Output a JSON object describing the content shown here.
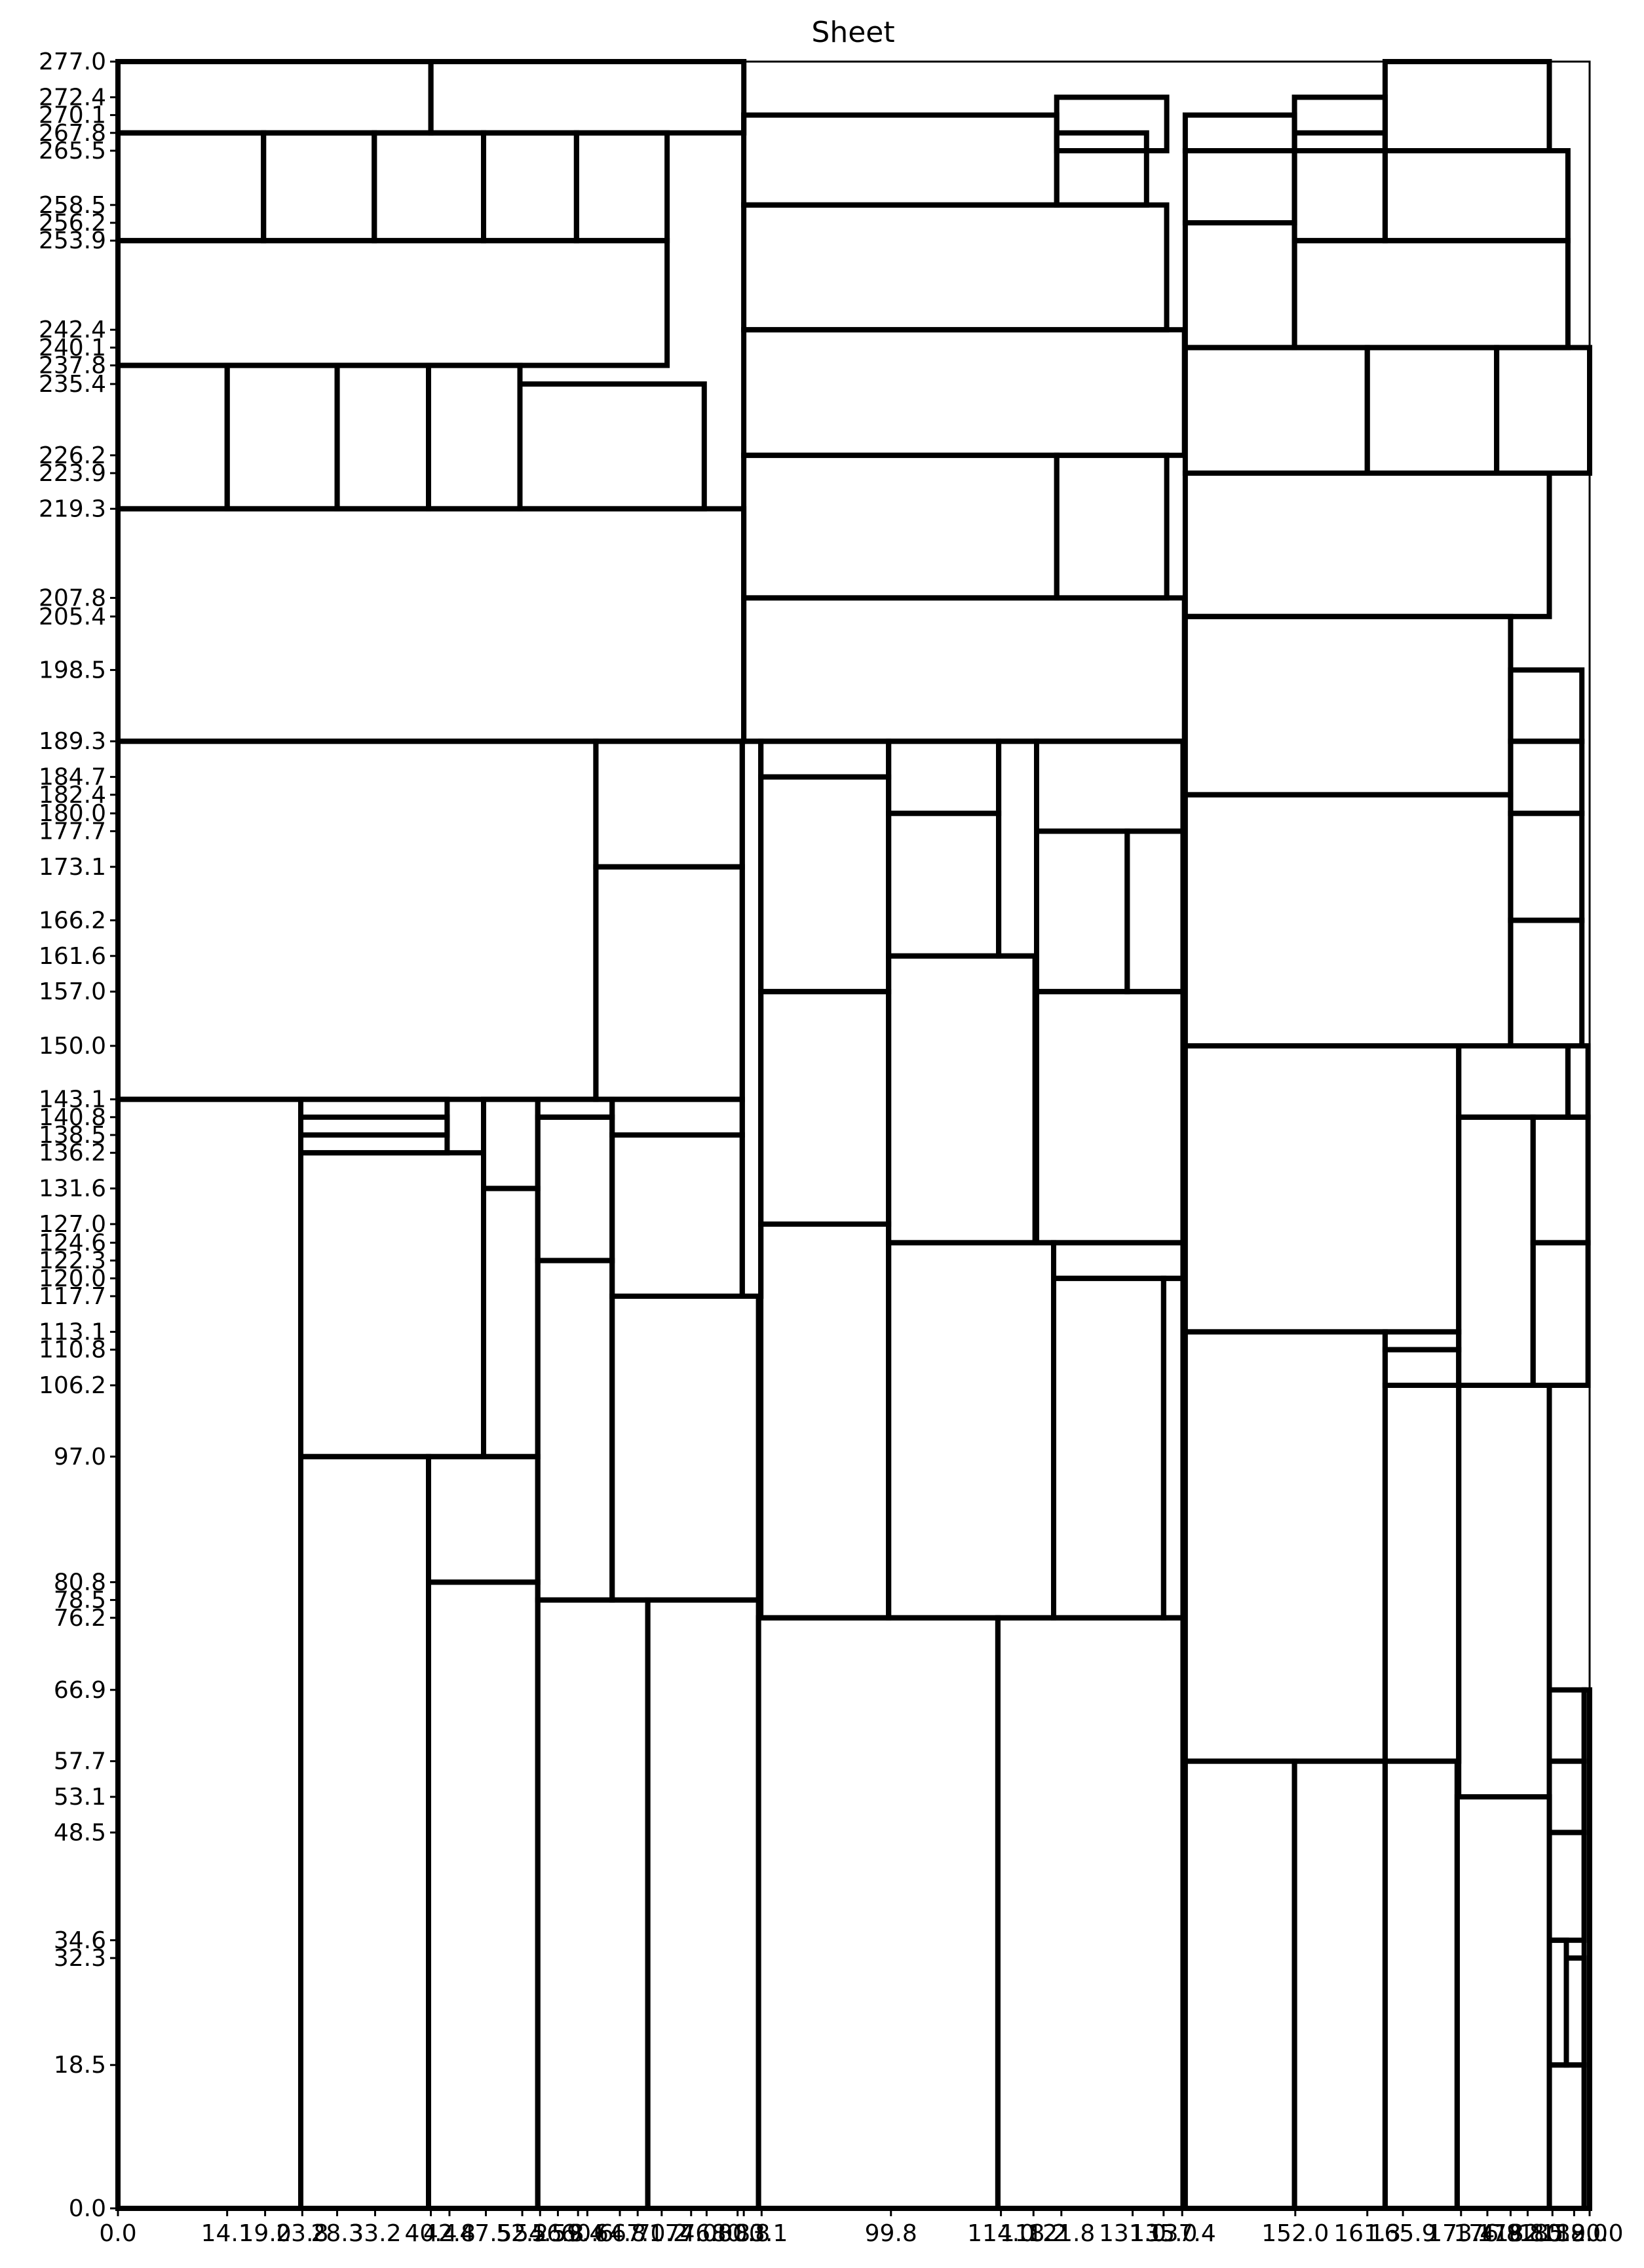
{
  "title": "Sheet",
  "chart_data": {
    "type": "cutting-layout",
    "title": "Sheet",
    "xlim": [
      0,
      190
    ],
    "ylim": [
      0,
      277
    ],
    "x_ticks": [
      "0.0",
      "14.1",
      "19.0",
      "23.8",
      "28.3",
      "33.2",
      "40.4",
      "42.8",
      "47.5",
      "52.2",
      "54.5",
      "56.8",
      "59.4",
      "60.6",
      "64.8",
      "67.1",
      "70.2",
      "74.0",
      "76.0",
      "80.0",
      "80.8",
      "83.1",
      "99.8",
      "114.0",
      "118.2",
      "121.8",
      "131.0",
      "135.0",
      "137.4",
      "152.0",
      "161.3",
      "165.9",
      "173.4",
      "176.8",
      "179.8",
      "182.0",
      "185.2",
      "188.0",
      "190.0"
    ],
    "y_ticks": [
      "0.0",
      "18.5",
      "32.3",
      "34.6",
      "48.5",
      "53.1",
      "57.7",
      "66.9",
      "76.2",
      "78.5",
      "80.8",
      "97.0",
      "106.2",
      "110.8",
      "113.1",
      "117.7",
      "120.0",
      "122.3",
      "124.6",
      "127.0",
      "131.6",
      "136.2",
      "138.5",
      "140.8",
      "143.1",
      "150.0",
      "157.0",
      "161.6",
      "166.2",
      "173.1",
      "177.7",
      "180.0",
      "182.4",
      "184.7",
      "189.3",
      "198.5",
      "205.4",
      "207.8",
      "219.3",
      "223.9",
      "226.2",
      "235.4",
      "237.8",
      "240.1",
      "242.4",
      "253.9",
      "256.2",
      "258.5",
      "265.5",
      "267.8",
      "270.1",
      "272.4",
      "277.0"
    ],
    "pieces": [
      {
        "x": 0,
        "y": 267.8,
        "w": 40.4,
        "h": 9.2
      },
      {
        "x": 40.4,
        "y": 267.8,
        "w": 40.4,
        "h": 9.2
      },
      {
        "x": 80.8,
        "y": 258.5,
        "w": 40.4,
        "h": 11.6
      },
      {
        "x": 121.2,
        "y": 265.5,
        "w": 14.2,
        "h": 6.9
      },
      {
        "x": 121.2,
        "y": 258.5,
        "w": 11.6,
        "h": 9.3
      },
      {
        "x": 137.8,
        "y": 265.5,
        "w": 14.1,
        "h": 4.6
      },
      {
        "x": 151.9,
        "y": 265.5,
        "w": 11.7,
        "h": 6.9
      },
      {
        "x": 163.6,
        "y": 265.5,
        "w": 21.2,
        "h": 11.5
      },
      {
        "x": 0,
        "y": 253.9,
        "w": 18.8,
        "h": 13.9
      },
      {
        "x": 18.8,
        "y": 253.9,
        "w": 14.3,
        "h": 13.9
      },
      {
        "x": 33.1,
        "y": 253.9,
        "w": 14.1,
        "h": 13.9
      },
      {
        "x": 47.2,
        "y": 253.9,
        "w": 12.0,
        "h": 13.9
      },
      {
        "x": 59.2,
        "y": 253.9,
        "w": 11.7,
        "h": 13.9
      },
      {
        "x": 80.8,
        "y": 242.4,
        "w": 54.6,
        "h": 16.1
      },
      {
        "x": 137.8,
        "y": 256.2,
        "w": 14.1,
        "h": 9.3
      },
      {
        "x": 151.9,
        "y": 253.9,
        "w": 11.7,
        "h": 13.9
      },
      {
        "x": 163.6,
        "y": 253.9,
        "w": 23.6,
        "h": 11.6
      },
      {
        "x": 0,
        "y": 237.8,
        "w": 70.9,
        "h": 16.1
      },
      {
        "x": 137.8,
        "y": 240.1,
        "w": 14.1,
        "h": 16.1
      },
      {
        "x": 151.9,
        "y": 240.1,
        "w": 35.3,
        "h": 13.8
      },
      {
        "x": 0,
        "y": 219.3,
        "w": 14.1,
        "h": 18.5
      },
      {
        "x": 14.1,
        "y": 219.3,
        "w": 14.2,
        "h": 18.5
      },
      {
        "x": 28.3,
        "y": 219.3,
        "w": 11.8,
        "h": 18.5
      },
      {
        "x": 40.1,
        "y": 219.3,
        "w": 11.8,
        "h": 18.5
      },
      {
        "x": 51.9,
        "y": 219.3,
        "w": 23.8,
        "h": 16.1
      },
      {
        "x": 80.8,
        "y": 226.2,
        "w": 56.9,
        "h": 16.2
      },
      {
        "x": 137.8,
        "y": 223.9,
        "w": 23.5,
        "h": 16.2
      },
      {
        "x": 161.3,
        "y": 223.9,
        "w": 16.7,
        "h": 16.2
      },
      {
        "x": 178.0,
        "y": 223.9,
        "w": 12.0,
        "h": 16.2
      },
      {
        "x": 80.8,
        "y": 207.8,
        "w": 40.4,
        "h": 18.4
      },
      {
        "x": 121.2,
        "y": 207.8,
        "w": 14.2,
        "h": 18.4
      },
      {
        "x": 137.8,
        "y": 205.4,
        "w": 47.0,
        "h": 18.5
      },
      {
        "x": 0,
        "y": 189.3,
        "w": 80.8,
        "h": 30.0
      },
      {
        "x": 80.8,
        "y": 189.3,
        "w": 56.9,
        "h": 18.5
      },
      {
        "x": 137.8,
        "y": 182.4,
        "w": 42.0,
        "h": 23.0
      },
      {
        "x": 179.8,
        "y": 189.3,
        "w": 9.2,
        "h": 9.2
      },
      {
        "x": 0,
        "y": 143.1,
        "w": 61.7,
        "h": 46.2
      },
      {
        "x": 61.7,
        "y": 173.1,
        "w": 18.9,
        "h": 16.2
      },
      {
        "x": 61.7,
        "y": 143.1,
        "w": 18.9,
        "h": 30.0
      },
      {
        "x": 80.6,
        "y": 117.7,
        "w": 2.4,
        "h": 71.6
      },
      {
        "x": 83.0,
        "y": 184.7,
        "w": 16.5,
        "h": 4.6
      },
      {
        "x": 83.0,
        "y": 157.0,
        "w": 16.5,
        "h": 27.7
      },
      {
        "x": 99.5,
        "y": 180.0,
        "w": 14.2,
        "h": 9.3
      },
      {
        "x": 99.5,
        "y": 161.6,
        "w": 14.2,
        "h": 18.4
      },
      {
        "x": 113.7,
        "y": 161.6,
        "w": 4.9,
        "h": 27.7
      },
      {
        "x": 118.6,
        "y": 177.7,
        "w": 18.9,
        "h": 11.6
      },
      {
        "x": 118.6,
        "y": 157.0,
        "w": 11.7,
        "h": 20.7
      },
      {
        "x": 130.3,
        "y": 157.0,
        "w": 7.2,
        "h": 20.7
      },
      {
        "x": 179.8,
        "y": 180.0,
        "w": 9.2,
        "h": 9.3
      },
      {
        "x": 179.8,
        "y": 166.2,
        "w": 9.2,
        "h": 13.8
      },
      {
        "x": 179.8,
        "y": 150.0,
        "w": 9.2,
        "h": 16.2
      },
      {
        "x": 137.8,
        "y": 150.0,
        "w": 42.0,
        "h": 32.4
      },
      {
        "x": 0,
        "y": 0,
        "w": 23.6,
        "h": 143.1
      },
      {
        "x": 23.6,
        "y": 138.5,
        "w": 18.9,
        "h": 4.6
      },
      {
        "x": 23.6,
        "y": 136.2,
        "w": 18.9,
        "h": 4.6
      },
      {
        "x": 23.6,
        "y": 97.0,
        "w": 23.6,
        "h": 39.2
      },
      {
        "x": 47.2,
        "y": 131.6,
        "w": 7.0,
        "h": 11.5
      },
      {
        "x": 47.2,
        "y": 97.0,
        "w": 7.0,
        "h": 34.6
      },
      {
        "x": 54.2,
        "y": 140.8,
        "w": 9.6,
        "h": 2.3
      },
      {
        "x": 54.2,
        "y": 122.3,
        "w": 9.6,
        "h": 18.5
      },
      {
        "x": 54.2,
        "y": 78.5,
        "w": 9.6,
        "h": 43.8
      },
      {
        "x": 63.8,
        "y": 138.5,
        "w": 16.8,
        "h": 4.6
      },
      {
        "x": 63.8,
        "y": 117.7,
        "w": 16.8,
        "h": 20.8
      },
      {
        "x": 63.8,
        "y": 78.5,
        "w": 18.9,
        "h": 39.2
      },
      {
        "x": 83.0,
        "y": 127.0,
        "w": 16.5,
        "h": 30.0
      },
      {
        "x": 83.0,
        "y": 76.2,
        "w": 16.5,
        "h": 50.8
      },
      {
        "x": 99.5,
        "y": 124.6,
        "w": 18.9,
        "h": 37.0
      },
      {
        "x": 99.5,
        "y": 76.2,
        "w": 21.3,
        "h": 48.4
      },
      {
        "x": 118.6,
        "y": 124.6,
        "w": 18.9,
        "h": 32.4
      },
      {
        "x": 120.8,
        "y": 120.0,
        "w": 16.7,
        "h": 4.6
      },
      {
        "x": 120.8,
        "y": 76.2,
        "w": 14.2,
        "h": 43.8
      },
      {
        "x": 135.0,
        "y": 76.2,
        "w": 2.5,
        "h": 43.8
      },
      {
        "x": 137.8,
        "y": 113.1,
        "w": 35.3,
        "h": 36.9
      },
      {
        "x": 173.1,
        "y": 140.8,
        "w": 14.1,
        "h": 9.2
      },
      {
        "x": 187.2,
        "y": 140.8,
        "w": 2.6,
        "h": 9.2
      },
      {
        "x": 173.1,
        "y": 106.2,
        "w": 9.6,
        "h": 34.6
      },
      {
        "x": 182.7,
        "y": 124.6,
        "w": 7.1,
        "h": 16.2
      },
      {
        "x": 182.7,
        "y": 106.2,
        "w": 7.1,
        "h": 18.4
      },
      {
        "x": 163.6,
        "y": 110.8,
        "w": 9.5,
        "h": 2.3
      },
      {
        "x": 163.6,
        "y": 106.2,
        "w": 9.5,
        "h": 4.6
      },
      {
        "x": 23.6,
        "y": 0,
        "w": 16.5,
        "h": 97.0
      },
      {
        "x": 40.1,
        "y": 80.8,
        "w": 14.1,
        "h": 16.2
      },
      {
        "x": 40.1,
        "y": 0,
        "w": 14.1,
        "h": 80.8
      },
      {
        "x": 54.2,
        "y": 0,
        "w": 14.2,
        "h": 78.5
      },
      {
        "x": 68.4,
        "y": 0,
        "w": 14.3,
        "h": 78.5
      },
      {
        "x": 82.7,
        "y": 0,
        "w": 30.9,
        "h": 76.2
      },
      {
        "x": 113.6,
        "y": 0,
        "w": 23.9,
        "h": 76.2
      },
      {
        "x": 137.8,
        "y": 57.7,
        "w": 25.8,
        "h": 55.4
      },
      {
        "x": 137.8,
        "y": 0,
        "w": 14.1,
        "h": 57.7
      },
      {
        "x": 151.9,
        "y": 0,
        "w": 11.7,
        "h": 57.7
      },
      {
        "x": 163.6,
        "y": 57.7,
        "w": 9.5,
        "h": 48.5
      },
      {
        "x": 163.6,
        "y": 0,
        "w": 9.3,
        "h": 57.7
      },
      {
        "x": 173.1,
        "y": 53.1,
        "w": 11.7,
        "h": 53.1
      },
      {
        "x": 172.9,
        "y": 0,
        "w": 11.9,
        "h": 53.1
      },
      {
        "x": 184.8,
        "y": 57.7,
        "w": 4.5,
        "h": 9.2
      },
      {
        "x": 184.8,
        "y": 48.5,
        "w": 4.5,
        "h": 9.2
      },
      {
        "x": 184.8,
        "y": 34.6,
        "w": 4.5,
        "h": 13.9
      },
      {
        "x": 184.8,
        "y": 18.5,
        "w": 2.2,
        "h": 16.1
      },
      {
        "x": 187.0,
        "y": 18.5,
        "w": 2.3,
        "h": 13.8
      },
      {
        "x": 184.8,
        "y": 0,
        "w": 4.5,
        "h": 18.5
      },
      {
        "x": 189.3,
        "y": 0,
        "w": 0.7,
        "h": 66.9
      }
    ]
  }
}
